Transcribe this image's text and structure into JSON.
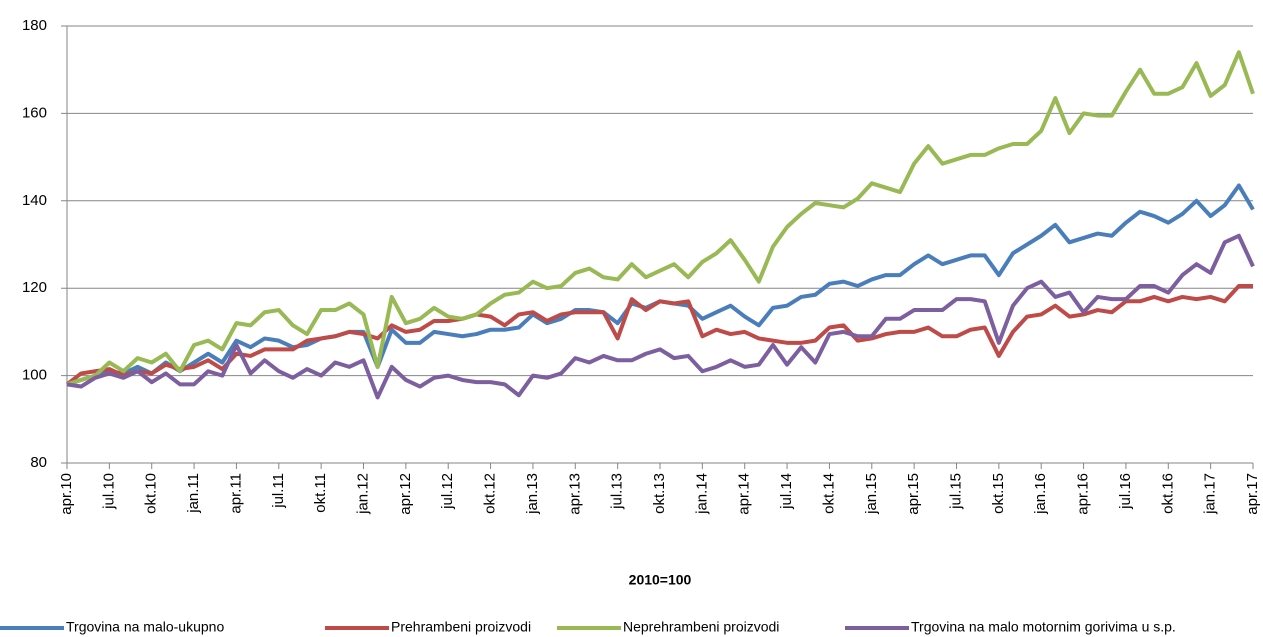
{
  "chart_data": {
    "type": "line",
    "xlabel": "2010=100",
    "categories": [
      "apr.10",
      null,
      null,
      "jul.10",
      null,
      null,
      "okt.10",
      null,
      null,
      "jan.11",
      null,
      null,
      "apr.11",
      null,
      null,
      "jul.11",
      null,
      null,
      "okt.11",
      null,
      null,
      "jan.12",
      null,
      null,
      "apr.12",
      null,
      null,
      "jul.12",
      null,
      null,
      "okt.12",
      null,
      null,
      "jan.13",
      null,
      null,
      "apr.13",
      null,
      null,
      "jul.13",
      null,
      null,
      "okt.13",
      null,
      null,
      "jan.14",
      null,
      null,
      "apr.14",
      null,
      null,
      "jul.14",
      null,
      null,
      "okt.14",
      null,
      null,
      "jan.15",
      null,
      null,
      "apr.15",
      null,
      null,
      "jul.15",
      null,
      null,
      "okt.15",
      null,
      null,
      "jan.16",
      null,
      null,
      "apr.16",
      null,
      null,
      "jul.16",
      null,
      null,
      "okt.16",
      null,
      null,
      "jan.17",
      null,
      null,
      "apr.17"
    ],
    "series": [
      {
        "name": "Trgovina na malo-ukupno",
        "color": "#4a7ebb",
        "values": [
          98,
          99,
          100,
          101,
          100.5,
          102,
          100.5,
          103,
          101,
          103,
          105,
          103,
          108,
          106.5,
          108.5,
          108,
          106.5,
          107,
          108.5,
          109,
          110,
          110,
          102,
          110.5,
          107.5,
          107.5,
          110,
          109.5,
          109,
          109.5,
          110.5,
          110.5,
          111,
          114,
          112,
          113,
          115,
          115,
          114.5,
          112,
          116.5,
          115.5,
          117,
          116.5,
          116,
          113,
          114.5,
          116,
          113.5,
          111.5,
          115.5,
          116,
          118,
          118.5,
          121,
          121.5,
          120.5,
          122,
          123,
          123,
          125.5,
          127.5,
          125.5,
          126.5,
          127.5,
          127.5,
          123,
          128,
          130,
          132,
          134.5,
          130.5,
          131.5,
          132.5,
          132,
          135,
          137.5,
          136.5,
          135,
          137,
          140,
          136.5,
          139,
          143.5,
          138
        ]
      },
      {
        "name": "Prehrambeni proizvodi",
        "color": "#be4b48",
        "values": [
          98,
          100.5,
          101,
          101.5,
          100,
          101,
          100.5,
          102.5,
          101.5,
          102,
          103.5,
          101.5,
          105,
          104.5,
          106,
          106,
          106,
          108,
          108.5,
          109,
          110,
          109.5,
          108.5,
          111.5,
          110,
          110.5,
          112.5,
          112.5,
          113,
          114,
          113.5,
          111.5,
          114,
          114.5,
          112.5,
          114,
          114.5,
          114.5,
          114.5,
          108.5,
          117.5,
          115,
          117,
          116.5,
          117,
          109,
          110.5,
          109.5,
          110,
          108.5,
          108,
          107.5,
          107.5,
          108,
          111,
          111.5,
          108,
          108.5,
          109.5,
          110,
          110,
          111,
          109,
          109,
          110.5,
          111,
          104.5,
          110,
          113.5,
          114,
          116,
          113.5,
          114,
          115,
          114.5,
          117,
          117,
          118,
          117,
          118,
          117.5,
          118,
          117,
          120.5,
          120.5
        ]
      },
      {
        "name": "Neprehrambeni proizvodi",
        "color": "#98b954",
        "values": [
          98,
          99,
          100,
          103,
          101,
          104,
          103,
          105,
          101,
          107,
          108,
          106,
          112,
          111.5,
          114.5,
          115,
          111.5,
          109.5,
          115,
          115,
          116.5,
          114,
          102,
          118,
          112,
          113,
          115.5,
          113.5,
          113,
          114,
          116.5,
          118.5,
          119,
          121.5,
          120,
          120.5,
          123.5,
          124.5,
          122.5,
          122,
          125.5,
          122.5,
          124,
          125.5,
          122.5,
          126,
          128,
          131,
          126.5,
          121.5,
          129.5,
          134,
          137,
          139.5,
          139,
          138.5,
          140.5,
          144,
          143,
          142,
          148.5,
          152.5,
          148.5,
          149.5,
          150.5,
          150.5,
          152,
          153,
          153,
          156,
          163.5,
          155.5,
          160,
          159.5,
          159.5,
          165,
          170,
          164.5,
          164.5,
          166,
          171.5,
          164,
          166.5,
          174,
          164.5
        ]
      },
      {
        "name": "Trgovina na malo motornim gorivima u s.p.",
        "color": "#7d5fa0",
        "values": [
          98,
          97.5,
          99.5,
          100.5,
          99.5,
          101,
          98.5,
          100.5,
          98,
          98,
          101,
          100,
          107,
          100.5,
          103.5,
          101,
          99.5,
          101.5,
          100,
          103,
          102,
          103.5,
          95,
          102,
          99,
          97.5,
          99.5,
          100,
          99,
          98.5,
          98.5,
          98,
          95.5,
          100,
          99.5,
          100.5,
          104,
          103,
          104.5,
          103.5,
          103.5,
          105,
          106,
          104,
          104.5,
          101,
          102,
          103.5,
          102,
          102.5,
          107,
          102.5,
          106.5,
          103,
          109.5,
          110,
          109,
          109,
          113,
          113,
          115,
          115,
          115,
          117.5,
          117.5,
          117,
          107.5,
          116,
          120,
          121.5,
          118,
          119,
          114.5,
          118,
          117.5,
          117.5,
          120.5,
          120.5,
          119,
          123,
          125.5,
          123.5,
          130.5,
          132,
          125
        ]
      }
    ],
    "ylim": [
      80,
      180
    ],
    "yticks": [
      80,
      100,
      120,
      140,
      160,
      180
    ],
    "grid": true
  }
}
